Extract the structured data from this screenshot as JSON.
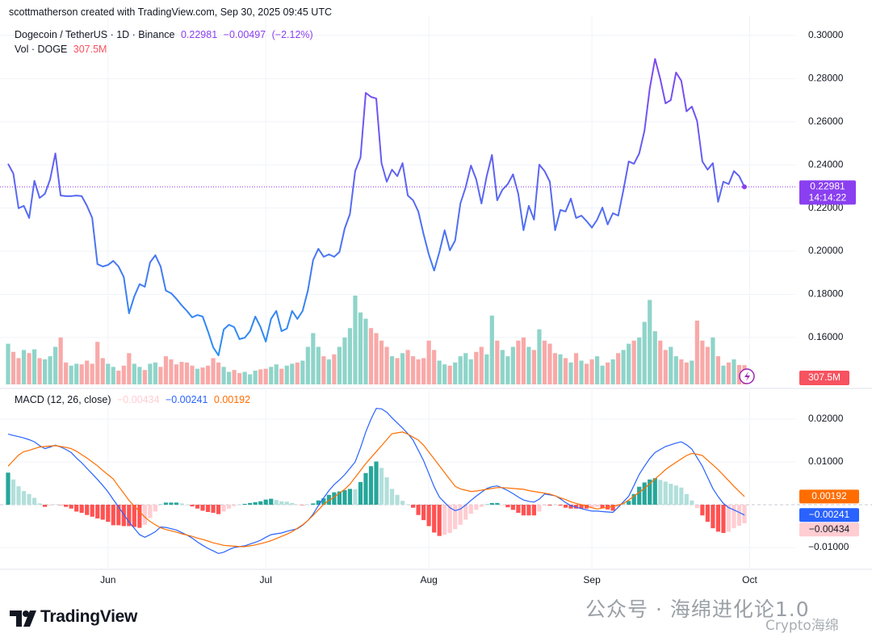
{
  "header": {
    "credit": "scottmatherson created with TradingView.com, Sep 30, 2025 09:45 UTC"
  },
  "chart_data": [
    {
      "type": "line",
      "title": "Dogecoin / TetherUS · 1D · Binance",
      "categories": [
        null,
        null,
        null,
        null,
        null,
        null,
        null,
        null,
        null,
        null,
        null,
        null,
        null,
        null,
        null,
        null,
        null,
        null,
        null,
        "Jun",
        null,
        null,
        null,
        null,
        null,
        null,
        null,
        null,
        null,
        null,
        null,
        null,
        null,
        null,
        null,
        null,
        null,
        null,
        null,
        null,
        null,
        null,
        null,
        null,
        null,
        null,
        null,
        null,
        null,
        "Jul",
        null,
        null,
        null,
        null,
        null,
        null,
        null,
        null,
        null,
        null,
        null,
        null,
        null,
        null,
        null,
        null,
        null,
        null,
        null,
        null,
        null,
        null,
        null,
        null,
        null,
        null,
        null,
        null,
        null,
        null,
        "Aug",
        null,
        null,
        null,
        null,
        null,
        null,
        null,
        null,
        null,
        null,
        null,
        null,
        null,
        null,
        null,
        null,
        null,
        null,
        null,
        null,
        null,
        null,
        null,
        null,
        null,
        null,
        null,
        null,
        null,
        null,
        "Sep",
        null,
        null,
        null,
        null,
        null,
        null,
        null,
        null,
        null,
        null,
        null,
        null,
        null,
        null,
        null,
        null,
        null,
        null,
        null,
        null,
        null,
        null,
        null,
        null,
        null,
        null,
        null,
        null,
        null,
        "Oct"
      ],
      "values": [
        0.2405,
        0.236,
        0.2199,
        0.221,
        0.2154,
        0.2326,
        0.2247,
        0.2266,
        0.2333,
        0.2453,
        0.2258,
        0.2255,
        0.2255,
        0.2258,
        0.2255,
        0.221,
        0.2154,
        0.194,
        0.1929,
        0.1936,
        0.1955,
        0.1929,
        0.188,
        0.1712,
        0.179,
        0.1847,
        0.1835,
        0.1948,
        0.1981,
        0.1929,
        0.1817,
        0.1805,
        0.1779,
        0.1749,
        0.1723,
        0.1693,
        0.1704,
        0.1697,
        0.1629,
        0.1554,
        0.1517,
        0.1637,
        0.1659,
        0.1648,
        0.1592,
        0.1599,
        0.1629,
        0.1697,
        0.1648,
        0.1581,
        0.1686,
        0.1723,
        0.1629,
        0.1641,
        0.1723,
        0.1686,
        0.1723,
        0.1817,
        0.1959,
        0.2011,
        0.1974,
        0.1985,
        0.1974,
        0.1996,
        0.2105,
        0.2172,
        0.2371,
        0.2434,
        0.2734,
        0.2715,
        0.2708,
        0.2408,
        0.2322,
        0.2378,
        0.2348,
        0.2408,
        0.2258,
        0.2236,
        0.2184,
        0.2079,
        0.1985,
        0.191,
        0.1996,
        0.2097,
        0.2004,
        0.2049,
        0.2221,
        0.2296,
        0.2397,
        0.2333,
        0.2221,
        0.2348,
        0.2446,
        0.2236,
        0.2285,
        0.2311,
        0.2356,
        0.2266,
        0.2097,
        0.221,
        0.2146,
        0.2401,
        0.2371,
        0.2322,
        0.2097,
        0.2191,
        0.2184,
        0.2244,
        0.2154,
        0.2165,
        0.2139,
        0.2109,
        0.2146,
        0.2202,
        0.2124,
        0.2176,
        0.2165,
        0.2285,
        0.2416,
        0.2405,
        0.2453,
        0.2558,
        0.2753,
        0.2891,
        0.2798,
        0.2685,
        0.27,
        0.2828,
        0.279,
        0.2648,
        0.267,
        0.2603,
        0.2416,
        0.2378,
        0.2408,
        0.2229,
        0.2322,
        0.2311,
        0.2371,
        0.2348,
        0.22981,
        null
      ],
      "gradient": [
        "#2196f3",
        "#8a3ff0"
      ],
      "change": {
        "value": -0.00497,
        "label": "−0.00497"
      },
      "change_percent": {
        "value": -2.12,
        "label": "(−2.12%)"
      },
      "countdown": "14:14:22",
      "ylim": [
        0.1375,
        0.3052
      ],
      "yticks": [
        {
          "value": 0.16,
          "label": "0.16000"
        },
        {
          "value": 0.18,
          "label": "0.18000"
        },
        {
          "value": 0.2,
          "label": "0.20000"
        },
        {
          "value": 0.22,
          "label": "0.22000"
        },
        {
          "value": 0.24,
          "label": "0.24000"
        },
        {
          "value": 0.26,
          "label": "0.26000"
        },
        {
          "value": 0.28,
          "label": "0.28000"
        },
        {
          "value": 0.3,
          "label": "0.30000"
        }
      ],
      "grid": true
    },
    {
      "type": "bar",
      "title": "Vol · DOGE",
      "values": [
        650,
        520,
        420,
        550,
        500,
        560,
        420,
        400,
        450,
        600,
        750,
        350,
        300,
        330,
        320,
        380,
        330,
        680,
        420,
        330,
        280,
        220,
        300,
        500,
        330,
        280,
        230,
        330,
        350,
        280,
        450,
        400,
        320,
        360,
        350,
        300,
        250,
        270,
        300,
        420,
        350,
        280,
        200,
        230,
        180,
        200,
        160,
        220,
        240,
        250,
        280,
        320,
        250,
        300,
        330,
        350,
        380,
        600,
        820,
        600,
        450,
        400,
        480,
        600,
        750,
        900,
        1420,
        1150,
        1050,
        900,
        820,
        700,
        600,
        450,
        420,
        500,
        550,
        450,
        400,
        420,
        700,
        550,
        380,
        320,
        300,
        350,
        450,
        500,
        400,
        520,
        600,
        480,
        1100,
        700,
        550,
        450,
        600,
        700,
        750,
        600,
        550,
        880,
        700,
        650,
        500,
        480,
        420,
        350,
        500,
        380,
        330,
        400,
        450,
        300,
        350,
        400,
        500,
        550,
        650,
        700,
        750,
        1000,
        1350,
        850,
        700,
        550,
        600,
        450,
        400,
        350,
        380,
        1020,
        700,
        600,
        750,
        450,
        300,
        350,
        400,
        310,
        307.5,
        null
      ],
      "last_label": "307.5M",
      "up_color": "#8fd4c9",
      "down_color": "#f8a9a8",
      "label_color": "#f7525f"
    },
    {
      "type": "macd",
      "title": "MACD (12, 26, close)",
      "histogram": {
        "values": [
          0.0075,
          0.0059,
          0.0043,
          0.0032,
          0.0025,
          0.0016,
          0.0003,
          -0.0005,
          -0.0002,
          0.0001,
          -0.0001,
          -0.0005,
          -0.0009,
          -0.0016,
          -0.0019,
          -0.0024,
          -0.0028,
          -0.0032,
          -0.0035,
          -0.004,
          -0.0048,
          -0.0048,
          -0.005,
          -0.005,
          -0.0052,
          -0.0054,
          -0.0047,
          -0.0031,
          -0.0016,
          0.0002,
          0.0005,
          0.0005,
          0.0005,
          0.0003,
          0.0,
          -0.0004,
          -0.0009,
          -0.0014,
          -0.0017,
          -0.0019,
          -0.0022,
          -0.0016,
          -0.0009,
          -0.0003,
          0.0,
          0.0002,
          0.0004,
          0.0006,
          0.0008,
          0.0012,
          0.0014,
          0.0011,
          0.0008,
          0.0007,
          0.0004,
          -0.0001,
          -0.0001,
          0.0,
          0.0003,
          0.001,
          0.0015,
          0.0023,
          0.0029,
          0.0031,
          0.0034,
          0.0037,
          0.0036,
          0.0053,
          0.0074,
          0.009,
          0.0101,
          0.0086,
          0.0064,
          0.0037,
          0.0023,
          0.0009,
          0.0001,
          -0.0007,
          -0.0024,
          -0.0036,
          -0.005,
          -0.0065,
          -0.0073,
          -0.007,
          -0.0066,
          -0.0057,
          -0.0047,
          -0.0035,
          -0.0021,
          -0.0012,
          -0.0005,
          0.0002,
          0.0004,
          0.0004,
          -0.0001,
          -0.0006,
          -0.0012,
          -0.0019,
          -0.0025,
          -0.0025,
          -0.0025,
          -0.0016,
          -0.0002,
          -0.0002,
          0.0,
          -0.0002,
          -0.0007,
          -0.0009,
          -0.0009,
          -0.0009,
          -0.0009,
          -0.0008,
          -0.0005,
          -0.0008,
          -0.0011,
          -0.0014,
          -0.0005,
          0.0004,
          0.0009,
          0.0025,
          0.0042,
          0.0052,
          0.0059,
          0.0062,
          0.0058,
          0.0054,
          0.0049,
          0.0045,
          0.004,
          0.0025,
          0.001,
          -0.0008,
          -0.0025,
          -0.004,
          -0.0055,
          -0.0063,
          -0.0066,
          -0.0063,
          -0.0055,
          -0.0049,
          -0.00434,
          null
        ],
        "last_label": "−0.00434",
        "colors": {
          "up_grow": "#26a69a",
          "up_fall": "#b2dfdb",
          "down_grow": "#ff5252",
          "down_fall": "#ffcdd2"
        }
      },
      "macd": {
        "color": "#2962ff",
        "last_label": "−0.00241",
        "values": [
          0.0165,
          0.0162,
          0.0159,
          0.0156,
          0.0152,
          0.0147,
          0.0138,
          0.0131,
          0.0135,
          0.0139,
          0.0135,
          0.0129,
          0.0122,
          0.0109,
          0.0098,
          0.0085,
          0.0072,
          0.0059,
          0.0045,
          0.003,
          0.0012,
          -0.0005,
          -0.0023,
          -0.004,
          -0.0055,
          -0.007,
          -0.0076,
          -0.007,
          -0.0063,
          -0.0052,
          -0.0053,
          -0.0056,
          -0.0059,
          -0.0065,
          -0.0071,
          -0.0078,
          -0.0087,
          -0.0095,
          -0.0102,
          -0.0108,
          -0.0114,
          -0.0111,
          -0.0105,
          -0.01,
          -0.0098,
          -0.0096,
          -0.0092,
          -0.0088,
          -0.0083,
          -0.0076,
          -0.007,
          -0.0068,
          -0.0066,
          -0.0062,
          -0.0059,
          -0.0056,
          -0.0048,
          -0.0037,
          -0.0022,
          -0.0002,
          0.0016,
          0.0033,
          0.0047,
          0.0058,
          0.007,
          0.0085,
          0.01,
          0.0133,
          0.017,
          0.02,
          0.0225,
          0.0224,
          0.0216,
          0.0203,
          0.0191,
          0.0179,
          0.0166,
          0.0151,
          0.0127,
          0.0103,
          0.0073,
          0.0042,
          0.0018,
          0.0005,
          -0.0007,
          -0.0014,
          -0.001,
          -0.0001,
          0.001,
          0.002,
          0.0029,
          0.0038,
          0.0042,
          0.0044,
          0.0039,
          0.0033,
          0.0026,
          0.0018,
          0.0011,
          0.0008,
          0.0006,
          0.0013,
          0.0025,
          0.0023,
          0.0021,
          0.0014,
          0.0005,
          -0.0002,
          -0.0006,
          -0.0009,
          -0.0012,
          -0.0015,
          -0.0015,
          -0.0016,
          -0.0017,
          -0.0018,
          -0.0006,
          0.0007,
          0.002,
          0.0045,
          0.0071,
          0.009,
          0.0108,
          0.0122,
          0.0129,
          0.0136,
          0.014,
          0.0144,
          0.0147,
          0.014,
          0.013,
          0.011,
          0.009,
          0.0064,
          0.0038,
          0.0019,
          0.0003,
          -0.0007,
          -0.0012,
          -0.0018,
          -0.00241,
          null
        ]
      },
      "signal": {
        "color": "#ff6d00",
        "last_label": "0.00192",
        "values": [
          0.009,
          0.0103,
          0.0116,
          0.0124,
          0.0127,
          0.0131,
          0.0135,
          0.0136,
          0.0137,
          0.0138,
          0.0136,
          0.0134,
          0.0131,
          0.0125,
          0.0117,
          0.0109,
          0.01,
          0.0091,
          0.008,
          0.007,
          0.006,
          0.0043,
          0.0027,
          0.001,
          -0.0003,
          -0.0016,
          -0.0029,
          -0.0039,
          -0.0047,
          -0.0054,
          -0.0058,
          -0.0061,
          -0.0064,
          -0.0068,
          -0.0071,
          -0.0074,
          -0.0078,
          -0.0081,
          -0.0085,
          -0.0089,
          -0.0092,
          -0.0095,
          -0.0096,
          -0.0097,
          -0.0098,
          -0.0098,
          -0.0096,
          -0.0094,
          -0.0091,
          -0.0088,
          -0.0084,
          -0.0079,
          -0.0074,
          -0.0069,
          -0.0063,
          -0.0055,
          -0.0047,
          -0.0037,
          -0.0025,
          -0.0012,
          0.0001,
          0.001,
          0.0018,
          0.0027,
          0.0036,
          0.0048,
          0.0064,
          0.008,
          0.0096,
          0.011,
          0.0124,
          0.0138,
          0.0152,
          0.0166,
          0.0168,
          0.017,
          0.0165,
          0.0158,
          0.0151,
          0.0139,
          0.0123,
          0.0107,
          0.0091,
          0.0075,
          0.0059,
          0.0043,
          0.0037,
          0.0034,
          0.0031,
          0.0032,
          0.0034,
          0.0036,
          0.0038,
          0.004,
          0.004,
          0.0039,
          0.0038,
          0.0037,
          0.0036,
          0.0033,
          0.0031,
          0.0029,
          0.0027,
          0.0025,
          0.0021,
          0.0016,
          0.0012,
          0.0007,
          0.0003,
          0.0,
          -0.0003,
          -0.0007,
          -0.001,
          -0.0008,
          -0.0006,
          -0.0004,
          -0.0001,
          0.0003,
          0.0011,
          0.002,
          0.0029,
          0.0038,
          0.0049,
          0.006,
          0.0071,
          0.0082,
          0.0091,
          0.0099,
          0.0107,
          0.0115,
          0.012,
          0.0118,
          0.0115,
          0.0104,
          0.0093,
          0.0082,
          0.0069,
          0.0056,
          0.0043,
          0.0031,
          0.00192,
          null
        ]
      },
      "ylim": [
        -0.01472,
        0.02642
      ],
      "yticks": [
        {
          "value": -0.01,
          "label": "−0.01000"
        },
        {
          "value": 0.01,
          "label": "0.01000"
        },
        {
          "value": 0.02,
          "label": "0.02000"
        }
      ],
      "zero_line": 0,
      "grid": true
    }
  ],
  "footer": {
    "brand": "TradingView",
    "watermark": "公众号 · 海绵进化论1.0",
    "handle": "Crypto海绵"
  }
}
